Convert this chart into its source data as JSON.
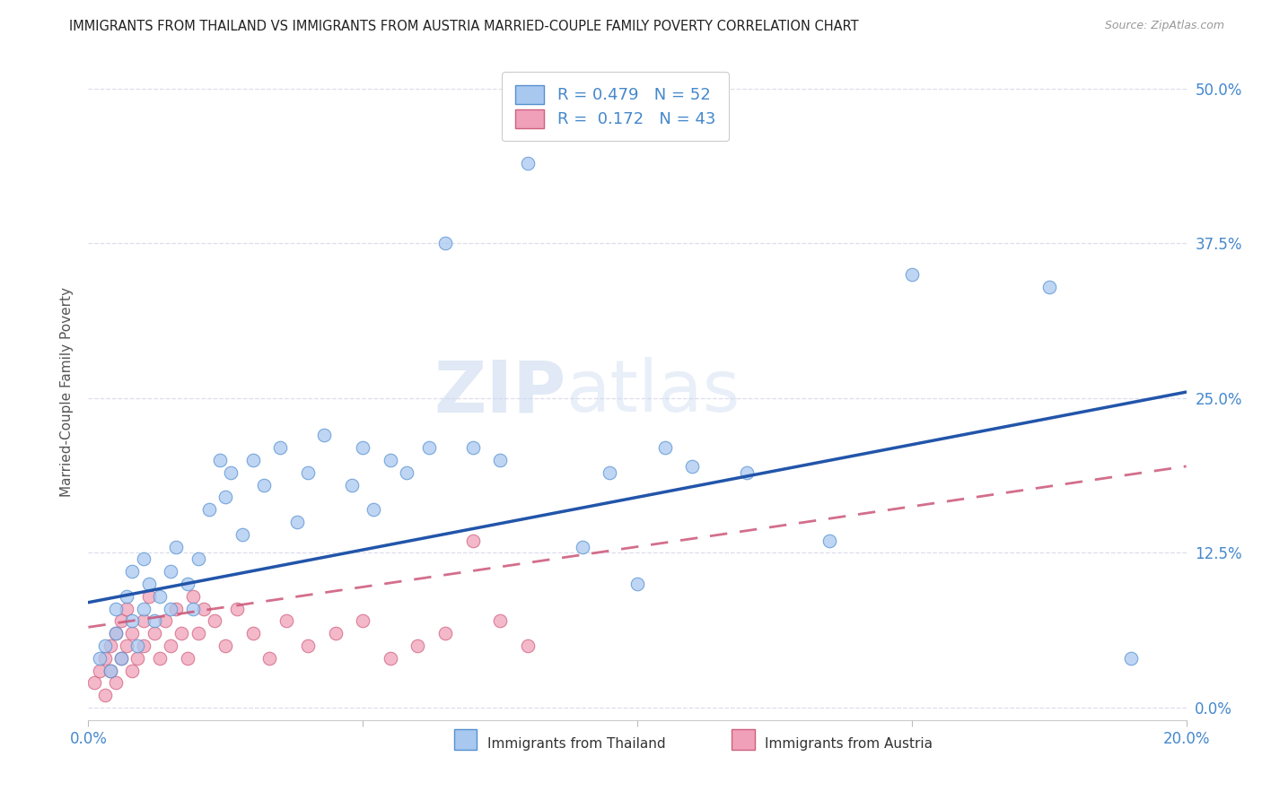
{
  "title": "IMMIGRANTS FROM THAILAND VS IMMIGRANTS FROM AUSTRIA MARRIED-COUPLE FAMILY POVERTY CORRELATION CHART",
  "source": "Source: ZipAtlas.com",
  "ylabel": "Married-Couple Family Poverty",
  "xlim": [
    0.0,
    0.2
  ],
  "ylim": [
    -0.01,
    0.52
  ],
  "legend_R1": "0.479",
  "legend_N1": "52",
  "legend_R2": "0.172",
  "legend_N2": "43",
  "color_thailand_fill": "#a8c8f0",
  "color_thailand_edge": "#5590d0",
  "color_austria_fill": "#f0a0b8",
  "color_austria_edge": "#d06080",
  "color_thailand_line": "#2255aa",
  "color_austria_line": "#cc5577",
  "background_color": "#ffffff",
  "watermark_zip": "ZIP",
  "watermark_atlas": "atlas",
  "title_color": "#222222",
  "source_color": "#999999",
  "tick_color": "#4488cc",
  "ylabel_color": "#555555",
  "grid_color": "#ddddee",
  "th_x": [
    0.002,
    0.003,
    0.004,
    0.005,
    0.005,
    0.006,
    0.007,
    0.008,
    0.008,
    0.009,
    0.01,
    0.01,
    0.011,
    0.012,
    0.013,
    0.015,
    0.015,
    0.016,
    0.018,
    0.019,
    0.02,
    0.022,
    0.024,
    0.025,
    0.026,
    0.028,
    0.03,
    0.032,
    0.035,
    0.038,
    0.04,
    0.043,
    0.048,
    0.05,
    0.052,
    0.055,
    0.058,
    0.062,
    0.065,
    0.07,
    0.075,
    0.08,
    0.09,
    0.095,
    0.1,
    0.105,
    0.11,
    0.12,
    0.135,
    0.15,
    0.175,
    0.19
  ],
  "th_y": [
    0.04,
    0.05,
    0.03,
    0.06,
    0.08,
    0.04,
    0.09,
    0.07,
    0.11,
    0.05,
    0.08,
    0.12,
    0.1,
    0.07,
    0.09,
    0.08,
    0.11,
    0.13,
    0.1,
    0.08,
    0.12,
    0.16,
    0.2,
    0.17,
    0.19,
    0.14,
    0.2,
    0.18,
    0.21,
    0.15,
    0.19,
    0.22,
    0.18,
    0.21,
    0.16,
    0.2,
    0.19,
    0.21,
    0.375,
    0.21,
    0.2,
    0.44,
    0.13,
    0.19,
    0.1,
    0.21,
    0.195,
    0.19,
    0.135,
    0.35,
    0.34,
    0.04
  ],
  "au_x": [
    0.001,
    0.002,
    0.003,
    0.003,
    0.004,
    0.004,
    0.005,
    0.005,
    0.006,
    0.006,
    0.007,
    0.007,
    0.008,
    0.008,
    0.009,
    0.01,
    0.01,
    0.011,
    0.012,
    0.013,
    0.014,
    0.015,
    0.016,
    0.017,
    0.018,
    0.019,
    0.02,
    0.021,
    0.023,
    0.025,
    0.027,
    0.03,
    0.033,
    0.036,
    0.04,
    0.045,
    0.05,
    0.055,
    0.06,
    0.065,
    0.07,
    0.075,
    0.08
  ],
  "au_y": [
    0.02,
    0.03,
    0.04,
    0.01,
    0.03,
    0.05,
    0.02,
    0.06,
    0.04,
    0.07,
    0.05,
    0.08,
    0.03,
    0.06,
    0.04,
    0.07,
    0.05,
    0.09,
    0.06,
    0.04,
    0.07,
    0.05,
    0.08,
    0.06,
    0.04,
    0.09,
    0.06,
    0.08,
    0.07,
    0.05,
    0.08,
    0.06,
    0.04,
    0.07,
    0.05,
    0.06,
    0.07,
    0.04,
    0.05,
    0.06,
    0.135,
    0.07,
    0.05
  ],
  "th_line_x0": 0.0,
  "th_line_y0": 0.085,
  "th_line_x1": 0.2,
  "th_line_y1": 0.255,
  "au_line_x0": 0.0,
  "au_line_y0": 0.065,
  "au_line_x1": 0.2,
  "au_line_y1": 0.195
}
